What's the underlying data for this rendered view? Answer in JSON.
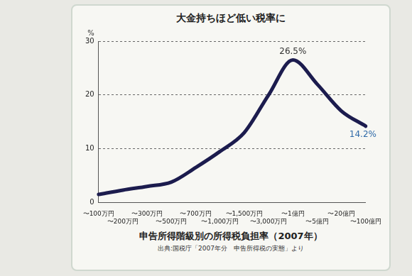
{
  "chart_data": {
    "type": "line",
    "title": "大金持ちほど低い税率に",
    "xlabel": "申告所得階級別の所得税負担率（2007年）",
    "source": "出典:国税庁「2007年分　申告所得税の実態」より",
    "ylabel": "%",
    "categories": [
      "〜100万円",
      "〜200万円",
      "〜300万円",
      "〜500万円",
      "〜700万円",
      "〜1,000万円",
      "〜1,500万円",
      "〜3,000万円",
      "〜1億円",
      "〜5億円",
      "〜20億円",
      "〜100億円"
    ],
    "values": [
      1.5,
      2.3,
      3.0,
      3.8,
      6.5,
      9.5,
      13.0,
      20.0,
      26.5,
      22.0,
      17.0,
      14.2
    ],
    "value_labels": [
      null,
      null,
      null,
      null,
      null,
      null,
      null,
      null,
      "26.5%",
      null,
      null,
      "14.2%"
    ],
    "data_labels": true,
    "color": "#1c1c4e",
    "ylim": [
      0,
      30
    ],
    "yticks": [
      0,
      10,
      20,
      30
    ],
    "grid": true
  }
}
